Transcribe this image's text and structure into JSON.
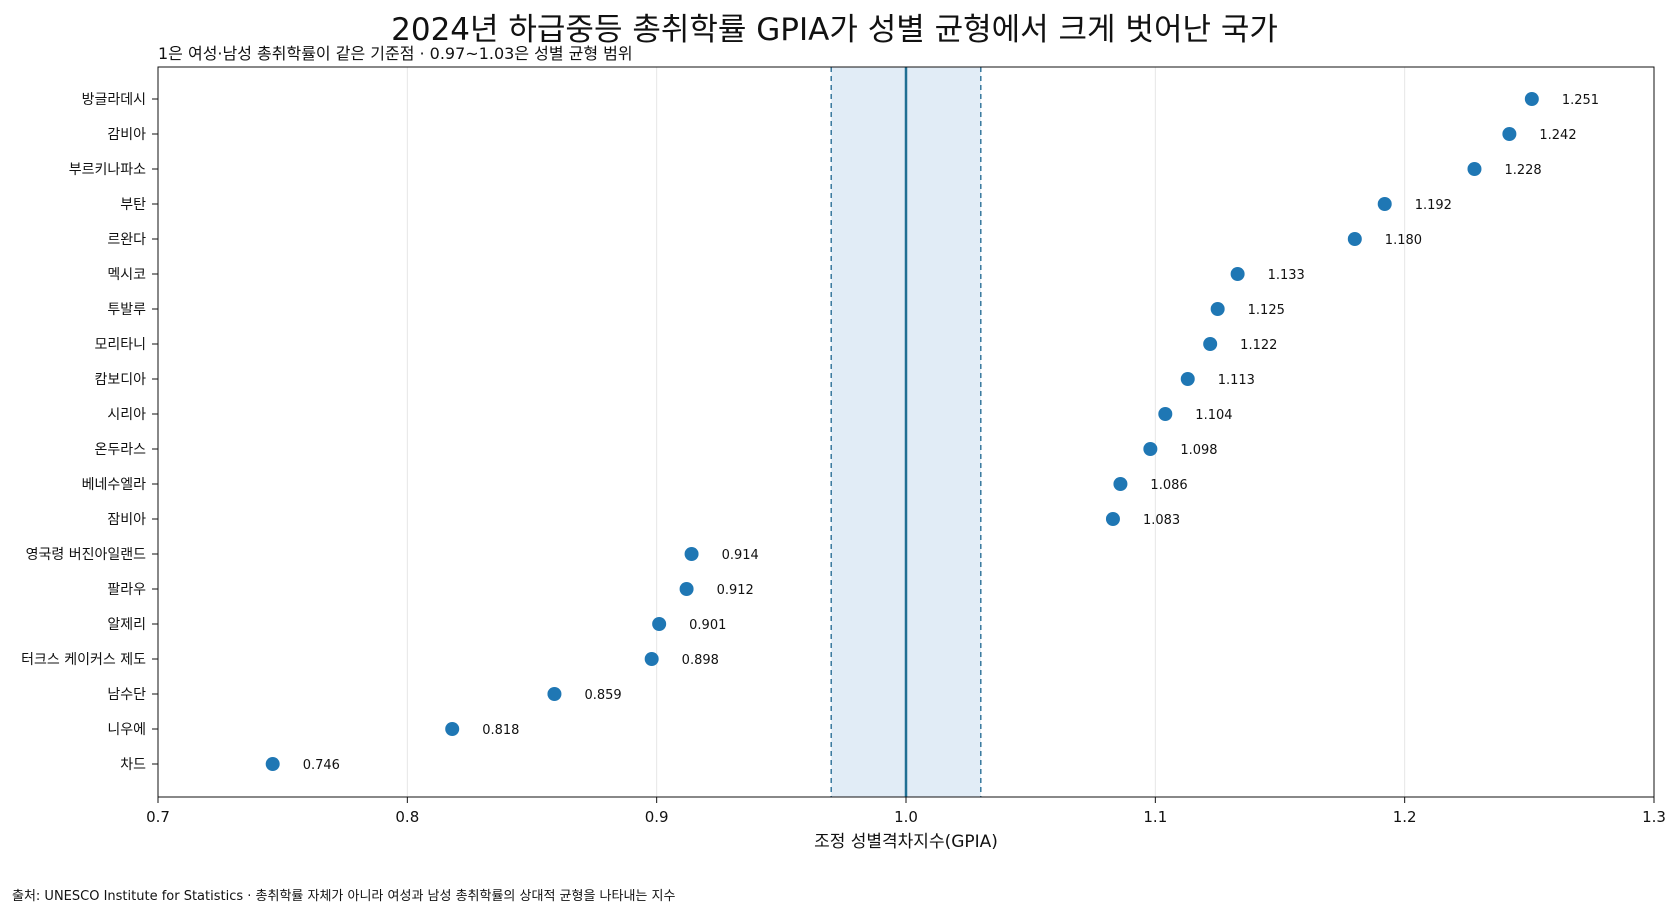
{
  "chart_data": {
    "type": "scatter",
    "title": "2024년 하급중등 총취학률 GPIA가 성별 균형에서 크게 벗어난 국가",
    "subtitle": "1은 여성·남성 총취학률이 같은 기준점 · 0.97~1.03은 성별 균형 범위",
    "xlabel": "조정 성별격차지수(GPIA)",
    "xlim": [
      0.7,
      1.3
    ],
    "xticks": [
      "0.7",
      "0.8",
      "0.9",
      "1.0",
      "1.1",
      "1.2",
      "1.3"
    ],
    "reference_line": 1.0,
    "parity_band": [
      0.97,
      1.03
    ],
    "grid": "vertical",
    "color": "#1f77b4",
    "band_color": "#e1ecf6",
    "categories": [
      "방글라데시",
      "감비아",
      "부르키나파소",
      "부탄",
      "르완다",
      "멕시코",
      "투발루",
      "모리타니",
      "캄보디아",
      "시리아",
      "온두라스",
      "베네수엘라",
      "잠비아",
      "영국령 버진아일랜드",
      "팔라우",
      "알제리",
      "터크스 케이커스 제도",
      "남수단",
      "니우에",
      "차드"
    ],
    "values": [
      1.251,
      1.242,
      1.228,
      1.192,
      1.18,
      1.133,
      1.125,
      1.122,
      1.113,
      1.104,
      1.098,
      1.086,
      1.083,
      0.914,
      0.912,
      0.901,
      0.898,
      0.859,
      0.818,
      0.746
    ],
    "labels": [
      "1.251",
      "1.242",
      "1.228",
      "1.192",
      "1.180",
      "1.133",
      "1.125",
      "1.122",
      "1.113",
      "1.104",
      "1.098",
      "1.086",
      "1.083",
      "0.914",
      "0.912",
      "0.901",
      "0.898",
      "0.859",
      "0.818",
      "0.746"
    ]
  },
  "source": "출처: UNESCO Institute for Statistics · 총취학률 자체가 아니라 여성과 남성 총취학률의 상대적 균형을 나타내는 지수"
}
